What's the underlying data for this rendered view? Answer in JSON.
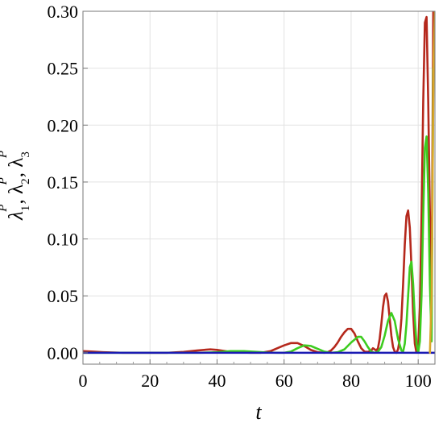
{
  "chart_data": {
    "type": "line",
    "title": "",
    "xlabel": "t",
    "ylabel": "λ1P, λ2P, λ3P",
    "xlim": [
      0,
      105
    ],
    "ylim": [
      -0.01,
      0.3
    ],
    "grid": true,
    "x_ticks": [
      0,
      20,
      40,
      60,
      80,
      100
    ],
    "y_ticks": [
      0.0,
      0.05,
      0.1,
      0.15,
      0.2,
      0.25,
      0.3
    ],
    "x_tick_labels": [
      "0",
      "20",
      "40",
      "60",
      "80",
      "100"
    ],
    "y_tick_labels": [
      "0.00",
      "0.05",
      "0.10",
      "0.15",
      "0.20",
      "0.25",
      "0.30"
    ],
    "series": [
      {
        "color": "#b5281c",
        "x": [
          0,
          3,
          6,
          9,
          12,
          16,
          20,
          25,
          30,
          34,
          38,
          40,
          43,
          47,
          50,
          53,
          56,
          58,
          60,
          62,
          64,
          66,
          68,
          70,
          72,
          73,
          74,
          75,
          76,
          77,
          78,
          79,
          80,
          81,
          82,
          83,
          84,
          85,
          86,
          86.5,
          87,
          87.5,
          88,
          88.5,
          89,
          89.5,
          90,
          90.5,
          91,
          91.5,
          92,
          92.5,
          93,
          93.5,
          94,
          94.5,
          95,
          95.5,
          96,
          96.5,
          97,
          97.5,
          98,
          98.5,
          99,
          99.5,
          100,
          100.5,
          101,
          101.5,
          102,
          102.5,
          103,
          103.5,
          104,
          104.5
        ],
        "values": [
          0.0015,
          0.001,
          0.0005,
          0.0002,
          0,
          0,
          0,
          0,
          0.0008,
          0.002,
          0.003,
          0.0025,
          0.0012,
          0.0003,
          0,
          0,
          0.0015,
          0.004,
          0.0065,
          0.0085,
          0.0085,
          0.006,
          0.0025,
          0.0005,
          0,
          0.0005,
          0.002,
          0.005,
          0.009,
          0.014,
          0.018,
          0.021,
          0.021,
          0.017,
          0.01,
          0.004,
          0.001,
          0.0008,
          0.002,
          0.004,
          0.003,
          0.002,
          0.004,
          0.012,
          0.025,
          0.04,
          0.05,
          0.052,
          0.045,
          0.03,
          0.015,
          0.005,
          0.001,
          0,
          0.003,
          0.012,
          0.03,
          0.06,
          0.095,
          0.12,
          0.125,
          0.11,
          0.075,
          0.035,
          0.008,
          0,
          0.005,
          0.04,
          0.12,
          0.22,
          0.29,
          0.295,
          0.22,
          0.12,
          0.05,
          0.3
        ]
      },
      {
        "color": "#3dcc1f",
        "x": [
          0,
          3,
          6,
          10,
          15,
          20,
          25,
          30,
          35,
          40,
          44,
          48,
          52,
          55,
          58,
          60,
          62,
          64,
          66,
          68,
          70,
          72,
          74,
          76,
          78,
          80,
          82,
          83,
          84,
          85,
          86,
          87,
          88,
          89,
          90,
          91,
          92,
          93,
          94,
          95,
          95.5,
          96,
          96.5,
          97,
          97.5,
          98,
          98.5,
          99,
          99.5,
          100,
          100.5,
          101,
          101.5,
          102,
          102.5,
          103,
          103.5,
          104,
          104.5
        ],
        "values": [
          0,
          0,
          0,
          0,
          0,
          0,
          0,
          0,
          0,
          0.0005,
          0.0015,
          0.0015,
          0.0008,
          0.0002,
          0,
          0,
          0.001,
          0.004,
          0.0065,
          0.006,
          0.0035,
          0.001,
          0,
          0.0005,
          0.003,
          0.009,
          0.014,
          0.014,
          0.01,
          0.005,
          0.001,
          0,
          0.001,
          0.005,
          0.015,
          0.028,
          0.035,
          0.028,
          0.012,
          0.002,
          0.001,
          0.008,
          0.025,
          0.05,
          0.075,
          0.08,
          0.06,
          0.03,
          0.008,
          0,
          0.01,
          0.05,
          0.12,
          0.18,
          0.19,
          0.14,
          0.06,
          0.01,
          0.25
        ]
      },
      {
        "color": "#1a1ab3",
        "x": [
          0,
          105
        ],
        "values": [
          0,
          0
        ]
      },
      {
        "color": "#d9a62b",
        "x": [
          103.5,
          104,
          104.3,
          104.6,
          105
        ],
        "values": [
          0,
          0.05,
          0.15,
          0.26,
          0.3
        ]
      }
    ]
  }
}
